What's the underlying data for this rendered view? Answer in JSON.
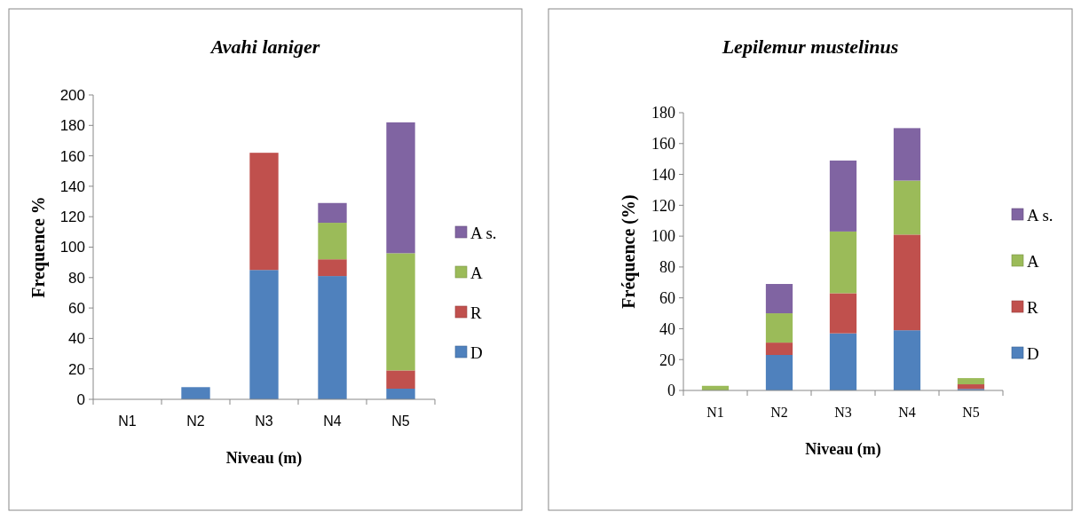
{
  "chart_data": [
    {
      "type": "bar",
      "title": "Avahi laniger",
      "xlabel": "Niveau (m)",
      "ylabel": "Frequence %",
      "categories": [
        "N1",
        "N2",
        "N3",
        "N4",
        "N5"
      ],
      "stacked": true,
      "legend": "right",
      "ylim": [
        0,
        200
      ],
      "yticks": [
        0,
        20,
        40,
        60,
        80,
        100,
        120,
        140,
        160,
        180,
        200
      ],
      "series": [
        {
          "name": "D",
          "color": "#4f81bd",
          "values": [
            0,
            8,
            85,
            81,
            7
          ]
        },
        {
          "name": "R",
          "color": "#c0504d",
          "values": [
            0,
            0,
            77,
            11,
            12
          ]
        },
        {
          "name": "A",
          "color": "#9bbb59",
          "values": [
            0,
            0,
            0,
            24,
            77
          ]
        },
        {
          "name": "A s.",
          "color": "#8064a2",
          "values": [
            0,
            0,
            0,
            13,
            86
          ]
        }
      ]
    },
    {
      "type": "bar",
      "title": "Lepilemur mustelinus",
      "xlabel": "Niveau (m)",
      "ylabel": "Fréquence (%)",
      "categories": [
        "N1",
        "N2",
        "N3",
        "N4",
        "N5"
      ],
      "stacked": true,
      "legend": "right",
      "ylim": [
        0,
        180
      ],
      "yticks": [
        0,
        20,
        40,
        60,
        80,
        100,
        120,
        140,
        160,
        180
      ],
      "series": [
        {
          "name": "D",
          "color": "#4f81bd",
          "values": [
            0,
            23,
            37,
            39,
            1
          ]
        },
        {
          "name": "R",
          "color": "#c0504d",
          "values": [
            0,
            8,
            26,
            62,
            3
          ]
        },
        {
          "name": "A",
          "color": "#9bbb59",
          "values": [
            3,
            19,
            40,
            35,
            4
          ]
        },
        {
          "name": "A s.",
          "color": "#8064a2",
          "values": [
            0,
            19,
            46,
            34,
            0
          ]
        }
      ]
    }
  ]
}
